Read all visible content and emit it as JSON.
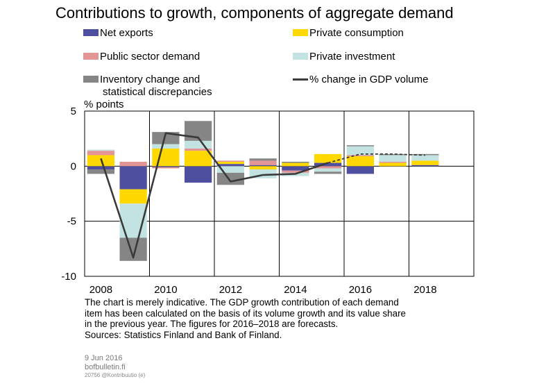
{
  "title": "Contributions to growth, components of aggregate demand",
  "legend": [
    {
      "label": "Net exports",
      "color": "#4F4FA0",
      "kind": "box"
    },
    {
      "label": "Private consumption",
      "color": "#FFD800",
      "kind": "box"
    },
    {
      "label": "Public sector demand",
      "color": "#E39494",
      "kind": "box"
    },
    {
      "label": "Private investment",
      "color": "#C3E3E3",
      "kind": "box"
    },
    {
      "label": "Inventory change and",
      "label2": "statistical discrepancies",
      "color": "#858585",
      "kind": "box"
    },
    {
      "label": "% change in GDP volume",
      "color": "#3a3a3a",
      "kind": "line"
    }
  ],
  "chart_data": {
    "type": "bar",
    "stacked": true,
    "ylabel": "% points",
    "ylim": [
      -10,
      5
    ],
    "yticks": [
      5,
      0,
      -5,
      -10
    ],
    "categories": [
      "2008",
      "2009",
      "2010",
      "2011",
      "2012",
      "2013",
      "2014",
      "2015",
      "2016",
      "2017",
      "2018"
    ],
    "xtick_labels": [
      "2008",
      "2010",
      "2012",
      "2014",
      "2016",
      "2018"
    ],
    "series": [
      {
        "name": "Net exports",
        "color": "#4F4FA0",
        "values": [
          -0.3,
          -2.1,
          -0.1,
          -1.5,
          0.2,
          0.1,
          -0.4,
          0.3,
          -0.7,
          0.0,
          0.1
        ]
      },
      {
        "name": "Private consumption",
        "color": "#FFD800",
        "values": [
          1.0,
          -1.3,
          1.6,
          1.4,
          0.2,
          -0.3,
          0.3,
          0.8,
          0.9,
          0.3,
          0.4
        ]
      },
      {
        "name": "Public sector demand",
        "color": "#E39494",
        "values": [
          0.4,
          0.4,
          -0.1,
          0.2,
          0.1,
          0.4,
          -0.2,
          -0.2,
          0.1,
          0.1,
          0.0
        ]
      },
      {
        "name": "Private investment",
        "color": "#C3E3E3",
        "values": [
          0.1,
          -3.1,
          0.4,
          0.7,
          -0.6,
          -0.8,
          -0.3,
          -0.3,
          0.8,
          0.6,
          0.5
        ]
      },
      {
        "name": "Inventory change and statistical discrepancies",
        "color": "#858585",
        "values": [
          -0.4,
          -2.1,
          1.1,
          1.8,
          -1.1,
          0.2,
          0.1,
          -0.2,
          0.1,
          0.1,
          0.1
        ]
      }
    ],
    "line": {
      "name": "% change in GDP volume",
      "color": "#3a3a3a",
      "values": [
        0.7,
        -8.3,
        3.0,
        2.6,
        -1.4,
        -0.8,
        -0.7,
        0.3,
        1.1,
        1.1,
        1.0
      ],
      "forecast_from": "2015"
    }
  },
  "note_lines": [
    "The chart is merely indicative. The GDP growth contribution of each demand",
    "item has been calculated on the basis of its volume growth and its value share",
    "in the previous year. The figures for 2016–2018 are forecasts.",
    "Sources: Statistics Finland and Bank of Finland."
  ],
  "footer": {
    "date": "9 Jun 2016",
    "site": "bofbulletin.fi",
    "code": "20756 @Kontribuutio (e)"
  }
}
